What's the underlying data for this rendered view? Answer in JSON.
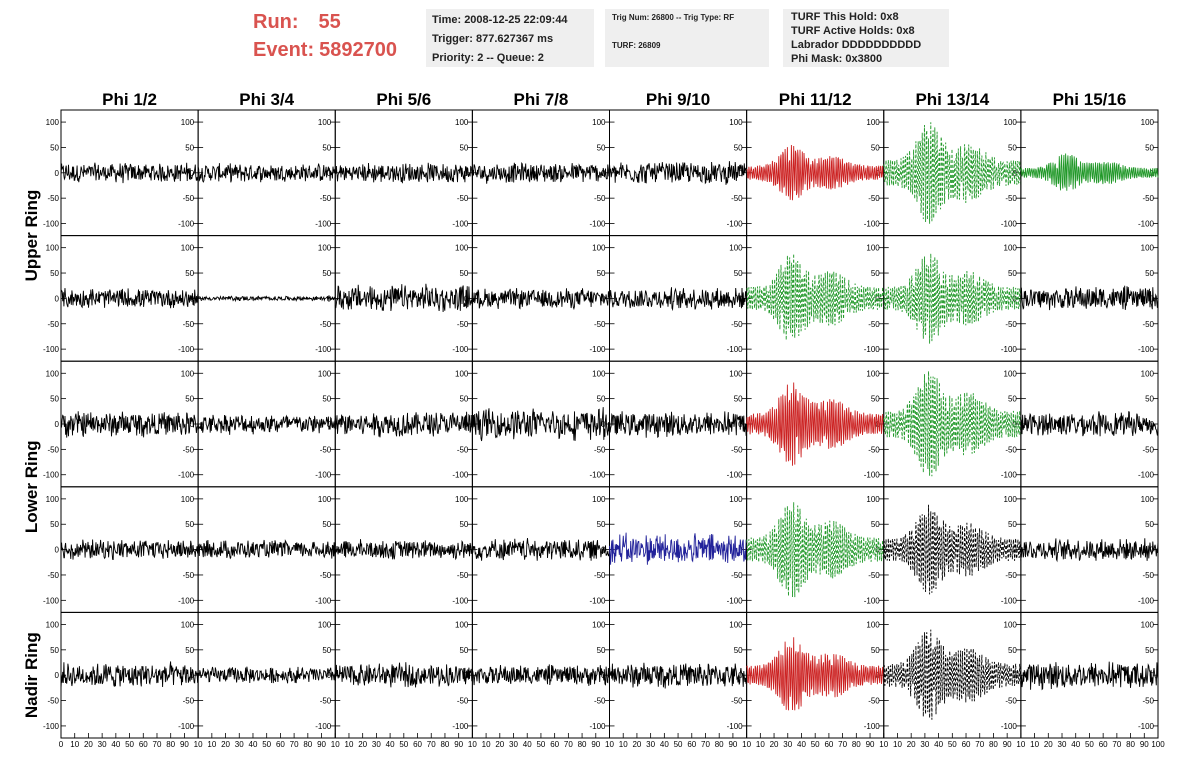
{
  "header": {
    "run_label": "Run:",
    "run_value": "55",
    "event_label": "Event:",
    "event_value": "5892700",
    "time": "Time: 2008-12-25 22:09:44",
    "trigger": "Trigger: 877.627367 ms",
    "priority": "Priority: 2 -- Queue: 2",
    "trig_num": "Trig Num: 26800 -- Trig Type: RF",
    "turf": "TURF: 26809",
    "turf_hold": "TURF This Hold: 0x8",
    "turf_active": "TURF Active Holds: 0x8",
    "labrador": "Labrador DDDDDDDDDD",
    "phi_mask": "Phi Mask: 0x3800"
  },
  "chart_data": {
    "type": "line",
    "columns": [
      "Phi 1/2",
      "Phi 3/4",
      "Phi 5/6",
      "Phi 7/8",
      "Phi 9/10",
      "Phi 11/12",
      "Phi 13/14",
      "Phi 15/16"
    ],
    "row_groups": [
      {
        "label": "Upper Ring",
        "rows": [
          0,
          1
        ]
      },
      {
        "label": "Lower Ring",
        "rows": [
          2,
          3
        ]
      },
      {
        "label": "Nadir Ring",
        "rows": [
          4
        ]
      }
    ],
    "ylim": [
      -110,
      110
    ],
    "yticks": [
      -100,
      -50,
      0,
      50,
      100
    ],
    "xlim": [
      0,
      100
    ],
    "xticks_first": [
      "0",
      "10",
      "20",
      "30",
      "40",
      "50",
      "60",
      "70",
      "80",
      "90",
      "10"
    ],
    "xticks_middle": [
      "10",
      "20",
      "30",
      "40",
      "50",
      "60",
      "70",
      "80",
      "90",
      "10"
    ],
    "xticks_last": [
      "10",
      "20",
      "30",
      "40",
      "50",
      "60",
      "70",
      "80",
      "90",
      "100"
    ],
    "colors": {
      "normal": "#000000",
      "triggered": "#cc2222",
      "l3": "#22992a",
      "blue": "#22229a"
    },
    "panels": [
      [
        {
          "amp": 22,
          "style": "normal"
        },
        {
          "amp": 20,
          "style": "normal"
        },
        {
          "amp": 22,
          "style": "normal"
        },
        {
          "amp": 22,
          "style": "normal"
        },
        {
          "amp": 24,
          "style": "normal"
        },
        {
          "amp": 55,
          "style": "triggered"
        },
        {
          "amp": 100,
          "style": "l3dash"
        },
        {
          "amp": 38,
          "style": "l3"
        }
      ],
      [
        {
          "amp": 22,
          "style": "normal"
        },
        {
          "amp": 5,
          "style": "normal"
        },
        {
          "amp": 30,
          "style": "normal"
        },
        {
          "amp": 22,
          "style": "normal"
        },
        {
          "amp": 24,
          "style": "normal"
        },
        {
          "amp": 90,
          "style": "l3dash"
        },
        {
          "amp": 90,
          "style": "l3dash"
        },
        {
          "amp": 26,
          "style": "normal"
        }
      ],
      [
        {
          "amp": 28,
          "style": "normal"
        },
        {
          "amp": 22,
          "style": "normal"
        },
        {
          "amp": 28,
          "style": "normal"
        },
        {
          "amp": 34,
          "style": "normal"
        },
        {
          "amp": 28,
          "style": "normal"
        },
        {
          "amp": 82,
          "style": "triggered"
        },
        {
          "amp": 105,
          "style": "l3dash"
        },
        {
          "amp": 26,
          "style": "normal"
        }
      ],
      [
        {
          "amp": 22,
          "style": "normal"
        },
        {
          "amp": 20,
          "style": "normal"
        },
        {
          "amp": 22,
          "style": "normal"
        },
        {
          "amp": 24,
          "style": "normal"
        },
        {
          "amp": 34,
          "style": "blue"
        },
        {
          "amp": 95,
          "style": "l3dash"
        },
        {
          "amp": 88,
          "style": "blackdash"
        },
        {
          "amp": 24,
          "style": "normal"
        }
      ],
      [
        {
          "amp": 28,
          "style": "normal"
        },
        {
          "amp": 18,
          "style": "normal"
        },
        {
          "amp": 26,
          "style": "normal"
        },
        {
          "amp": 22,
          "style": "normal"
        },
        {
          "amp": 28,
          "style": "normal"
        },
        {
          "amp": 75,
          "style": "triggered"
        },
        {
          "amp": 90,
          "style": "blackdash"
        },
        {
          "amp": 30,
          "style": "normal"
        }
      ]
    ]
  }
}
